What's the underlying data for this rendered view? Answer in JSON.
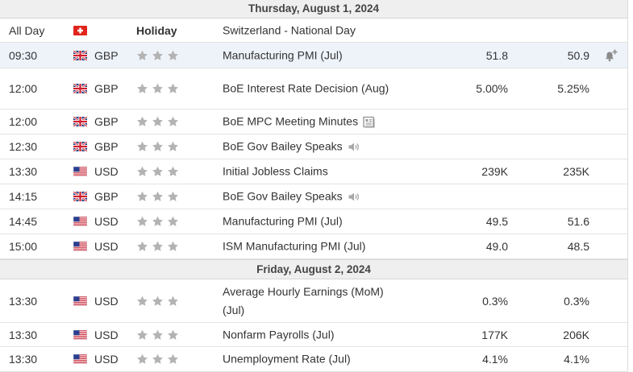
{
  "sections": [
    {
      "date": "Thursday, August 1, 2024",
      "rows": [
        {
          "time": "All Day",
          "flag": "switzerland-flag",
          "holiday": "Holiday",
          "event": "Switzerland - National Day"
        },
        {
          "time": "09:30",
          "flag": "uk-flag",
          "currency": "GBP",
          "event": "Manufacturing PMI (Jul)",
          "actual": "51.8",
          "forecast": "50.9",
          "stars": 3,
          "highlight": true,
          "alert": "bell-plus-icon"
        },
        {
          "time": "12:00",
          "flag": "uk-flag",
          "currency": "GBP",
          "event": "BoE Interest Rate Decision (Aug)",
          "actual": "5.00%",
          "forecast": "5.25%",
          "stars": 3
        },
        {
          "time": "12:00",
          "flag": "uk-flag",
          "currency": "GBP",
          "event": "BoE MPC Meeting Minutes",
          "icon": "document-icon",
          "stars": 3
        },
        {
          "time": "12:30",
          "flag": "uk-flag",
          "currency": "GBP",
          "event": "BoE Gov Bailey Speaks",
          "icon": "speaker-icon",
          "stars": 3
        },
        {
          "time": "13:30",
          "flag": "us-flag",
          "currency": "USD",
          "event": "Initial Jobless Claims",
          "actual": "239K",
          "forecast": "235K",
          "stars": 3
        },
        {
          "time": "14:15",
          "flag": "uk-flag",
          "currency": "GBP",
          "event": "BoE Gov Bailey Speaks",
          "icon": "speaker-icon",
          "stars": 3
        },
        {
          "time": "14:45",
          "flag": "us-flag",
          "currency": "USD",
          "event": "Manufacturing PMI (Jul)",
          "actual": "49.5",
          "forecast": "51.6",
          "stars": 3
        },
        {
          "time": "15:00",
          "flag": "us-flag",
          "currency": "USD",
          "event": "ISM Manufacturing PMI (Jul)",
          "actual": "49.0",
          "forecast": "48.5",
          "stars": 3
        }
      ]
    },
    {
      "date": "Friday, August 2, 2024",
      "rows": [
        {
          "time": "13:30",
          "flag": "us-flag",
          "currency": "USD",
          "event": "Average Hourly Earnings (MoM) (Jul)",
          "actual": "0.3%",
          "forecast": "0.3%",
          "stars": 3
        },
        {
          "time": "13:30",
          "flag": "us-flag",
          "currency": "USD",
          "event": "Nonfarm Payrolls (Jul)",
          "actual": "177K",
          "forecast": "206K",
          "stars": 3
        },
        {
          "time": "13:30",
          "flag": "us-flag",
          "currency": "USD",
          "event": "Unemployment Rate (Jul)",
          "actual": "4.1%",
          "forecast": "4.1%",
          "stars": 3
        }
      ]
    }
  ],
  "colors": {
    "star": "#b3b3b3",
    "header_bg": "#efefef",
    "highlight_bg": "#eef3fa"
  }
}
